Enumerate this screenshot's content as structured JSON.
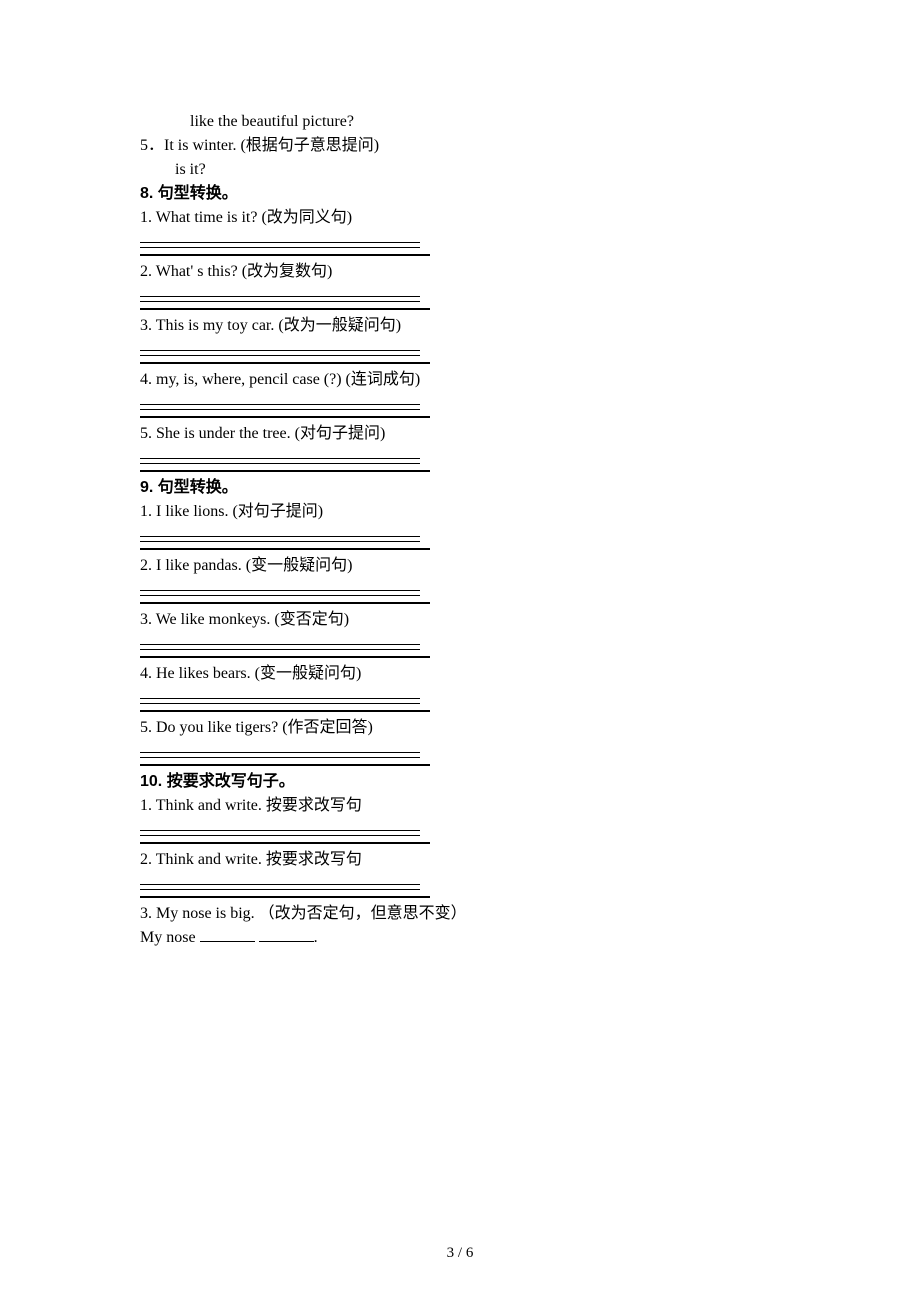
{
  "top": {
    "line1": "like the beautiful picture?",
    "q5": "5．It is winter. (根据句子意思提问)",
    "q5b": "is it?"
  },
  "s8": {
    "title": "8. 句型转换。",
    "items": [
      "1. What time is it? (改为同义句)",
      "2. What' s this? (改为复数句)",
      "3. This is my toy car. (改为一般疑问句)",
      "4. my, is, where, pencil case (?) (连词成句)",
      "5. She is under the tree. (对句子提问)"
    ]
  },
  "s9": {
    "title": "9. 句型转换。",
    "items": [
      "1. I like lions. (对句子提问)",
      "2. I like pandas. (变一般疑问句)",
      "3. We like monkeys. (变否定句)",
      "4. He likes bears. (变一般疑问句)",
      "5. Do you like tigers? (作否定回答)"
    ]
  },
  "s10": {
    "title": "10. 按要求改写句子。",
    "items": [
      "1. Think and write. 按要求改写句",
      "2. Think and write. 按要求改写句",
      "3. My nose is big. （改为否定句，但意思不变）"
    ],
    "fill_line": "My nose "
  },
  "footer": "3 / 6"
}
